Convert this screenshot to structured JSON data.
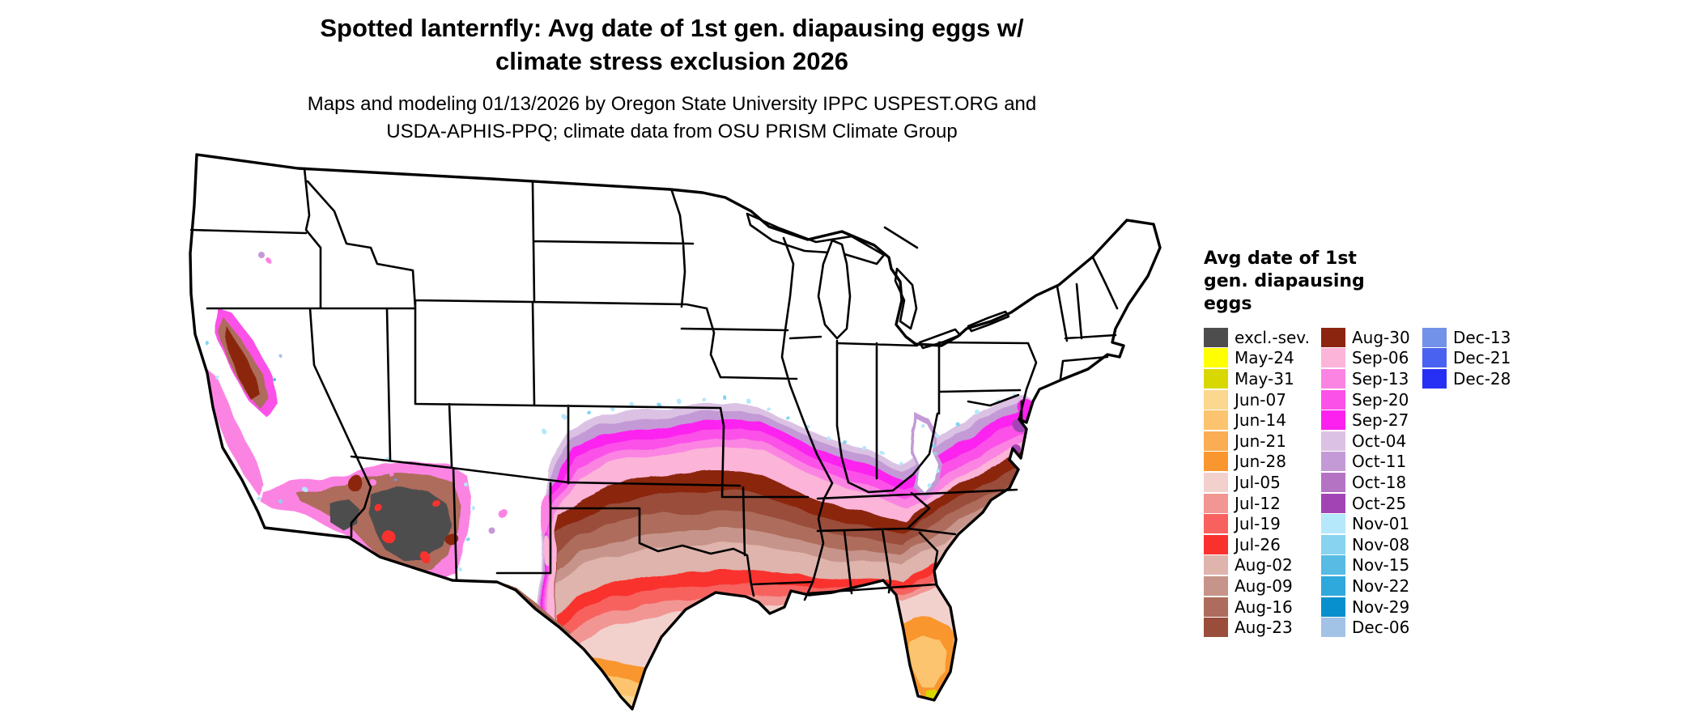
{
  "title": {
    "line1": "Spotted lanternfly: Avg date of 1st gen. diapausing eggs w/",
    "line2": "climate stress exclusion 2026"
  },
  "subtitle": {
    "line1": "Maps and modeling 01/13/2026 by Oregon State University IPPC USPEST.ORG and",
    "line2": "USDA-APHIS-PPQ; climate data from OSU PRISM Climate Group"
  },
  "legend": {
    "title_lines": [
      "Avg date of 1st",
      "gen. diapausing",
      "eggs"
    ],
    "columns": [
      [
        {
          "label": "excl.-sev.",
          "color": "#4D4D4D"
        },
        {
          "label": "May-24",
          "color": "#FFFF00"
        },
        {
          "label": "May-31",
          "color": "#D8D800"
        },
        {
          "label": "Jun-07",
          "color": "#FBD78F"
        },
        {
          "label": "Jun-14",
          "color": "#FCC46E"
        },
        {
          "label": "Jun-21",
          "color": "#FAAD52"
        },
        {
          "label": "Jun-28",
          "color": "#F9962F"
        },
        {
          "label": "Jul-05",
          "color": "#F2D1CD"
        },
        {
          "label": "Jul-12",
          "color": "#F19693"
        },
        {
          "label": "Jul-19",
          "color": "#F7625F"
        },
        {
          "label": "Jul-26",
          "color": "#F9312E"
        },
        {
          "label": "Aug-02",
          "color": "#DEB4AC"
        },
        {
          "label": "Aug-09",
          "color": "#C6948A"
        },
        {
          "label": "Aug-16",
          "color": "#AE6C5C"
        },
        {
          "label": "Aug-23",
          "color": "#9A4D3B"
        }
      ],
      [
        {
          "label": "Aug-30",
          "color": "#8B2510"
        },
        {
          "label": "Sep-06",
          "color": "#FCB4D9"
        },
        {
          "label": "Sep-13",
          "color": "#FB84E3"
        },
        {
          "label": "Sep-20",
          "color": "#FB51E8"
        },
        {
          "label": "Sep-27",
          "color": "#FC21EF"
        },
        {
          "label": "Oct-04",
          "color": "#DBC2E4"
        },
        {
          "label": "Oct-11",
          "color": "#C49AD6"
        },
        {
          "label": "Oct-18",
          "color": "#B573C4"
        },
        {
          "label": "Oct-25",
          "color": "#A344B5"
        },
        {
          "label": "Nov-01",
          "color": "#B5E8FB"
        },
        {
          "label": "Nov-08",
          "color": "#87D3F0"
        },
        {
          "label": "Nov-15",
          "color": "#57BBE4"
        },
        {
          "label": "Nov-22",
          "color": "#2FA8DB"
        },
        {
          "label": "Nov-29",
          "color": "#0890CE"
        },
        {
          "label": "Dec-06",
          "color": "#A3C3E6"
        }
      ],
      [
        {
          "label": "Dec-13",
          "color": "#7291E8"
        },
        {
          "label": "Dec-21",
          "color": "#4A62F0"
        },
        {
          "label": "Dec-28",
          "color": "#2630F5"
        }
      ]
    ]
  },
  "chart_data": {
    "type": "heatmap",
    "title": "Spotted lanternfly: Avg date of 1st gen. diapausing eggs w/ climate stress exclusion 2026",
    "subtitle": "Maps and modeling 01/13/2026 by Oregon State University IPPC USPEST.ORG and USDA-APHIS-PPQ; climate data from OSU PRISM Climate Group",
    "legend_title": "Avg date of 1st gen. diapausing eggs",
    "categories": [
      "excl.-sev.",
      "May-24",
      "May-31",
      "Jun-07",
      "Jun-14",
      "Jun-21",
      "Jun-28",
      "Jul-05",
      "Jul-12",
      "Jul-19",
      "Jul-26",
      "Aug-02",
      "Aug-09",
      "Aug-16",
      "Aug-23",
      "Aug-30",
      "Sep-06",
      "Sep-13",
      "Sep-20",
      "Sep-27",
      "Oct-04",
      "Oct-11",
      "Oct-18",
      "Oct-25",
      "Nov-01",
      "Nov-08",
      "Nov-15",
      "Nov-22",
      "Nov-29",
      "Dec-06",
      "Dec-13",
      "Dec-21",
      "Dec-28"
    ],
    "region_values": [
      {
        "region": "northern US (MT, ND, MN, WI, MI, New England, interior West highlands)",
        "value": "no data (white)"
      },
      {
        "region": "southern Arizona core / SE California desert",
        "value": "excl.-sev."
      },
      {
        "region": "California Central Valley core",
        "value": "Aug-30"
      },
      {
        "region": "ring around AZ core and W Texas Rio Grande",
        "value": "Aug-16 to Aug-30"
      },
      {
        "region": "N Texas, Oklahoma S, Arkansas, Tennessee, N Carolina belt",
        "value": "Aug-30"
      },
      {
        "region": "central Texas through central AL/GA/SC",
        "value": "Aug-02 to Aug-23"
      },
      {
        "region": "S-central Texas, Gulf belt, coastal AL/GA, N Florida",
        "value": "Jul-12 to Jul-26"
      },
      {
        "region": "coastal plain TX/LA, NE Florida",
        "value": "Jul-05"
      },
      {
        "region": "S Texas tip, central Florida",
        "value": "Jun-07 to Jun-28"
      },
      {
        "region": "S Florida tip and Keys",
        "value": "May-24 to May-31"
      },
      {
        "region": "S Kansas, Missouri, S IL/IN/OH, Virginia, Delmarva band",
        "value": "Sep-20 to Sep-27"
      },
      {
        "region": "fringe north of magenta band and Ozark/Appalachian margins",
        "value": "Oct-04 to Oct-25"
      },
      {
        "region": "outermost fringe specks",
        "value": "Nov-01 to Dec-28"
      }
    ]
  }
}
